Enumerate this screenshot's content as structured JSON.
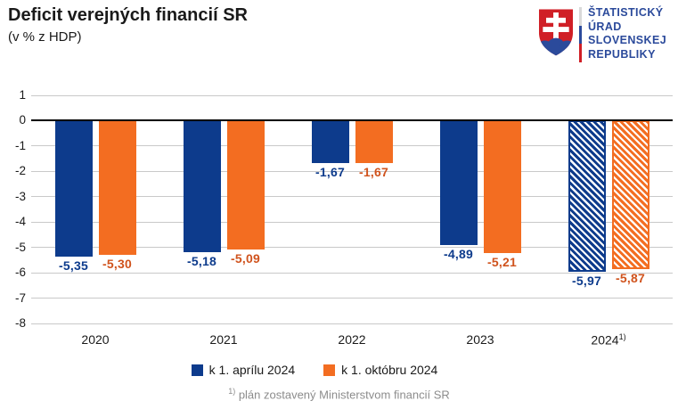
{
  "header": {
    "title": "Deficit verejných financií SR",
    "subtitle": "(v % z HDP)"
  },
  "logo": {
    "lines": [
      "ŠTATISTICKÝ",
      "ÚRAD",
      "SLOVENSKEJ",
      "REPUBLIKY"
    ],
    "text_color": "#2b4a9b",
    "shield_red": "#d01f26",
    "shield_blue": "#2b4a9b",
    "divider_colors": [
      "#d9d9d9",
      "#2b4a9b",
      "#d01f26"
    ]
  },
  "chart_data": {
    "type": "bar",
    "title": "Deficit verejných financií SR",
    "subtitle": "(v % z HDP)",
    "categories": [
      "2020",
      "2021",
      "2022",
      "2023",
      "2024"
    ],
    "category_superscripts": [
      "",
      "",
      "",
      "",
      "1)"
    ],
    "series": [
      {
        "name": "k 1. aprílu 2024",
        "color": "#0d3b8c",
        "label_color": "#0d3b8c",
        "values": [
          -5.35,
          -5.18,
          -1.67,
          -4.89,
          -5.97
        ]
      },
      {
        "name": "k 1. októbru 2024",
        "color": "#f36d21",
        "label_color": "#d0531d",
        "values": [
          -5.3,
          -5.09,
          -1.67,
          -5.21,
          -5.87
        ]
      }
    ],
    "value_labels": [
      [
        "-5,35",
        "-5,18",
        "-1,67",
        "-4,89",
        "-5,97"
      ],
      [
        "-5,30",
        "-5,09",
        "-1,67",
        "-5,21",
        "-5,87"
      ]
    ],
    "hatched_category_index": 4,
    "ylim": [
      -8,
      1
    ],
    "yticks": [
      1,
      0,
      -1,
      -2,
      -3,
      -4,
      -5,
      -6,
      -7,
      -8
    ],
    "grid": true,
    "grid_color": "#c9c9c9",
    "zero_line_color": "#000000",
    "legend_position": "bottom"
  },
  "footnote": {
    "sup": "1)",
    "text": " plán zostavený Ministerstvom financií SR"
  }
}
